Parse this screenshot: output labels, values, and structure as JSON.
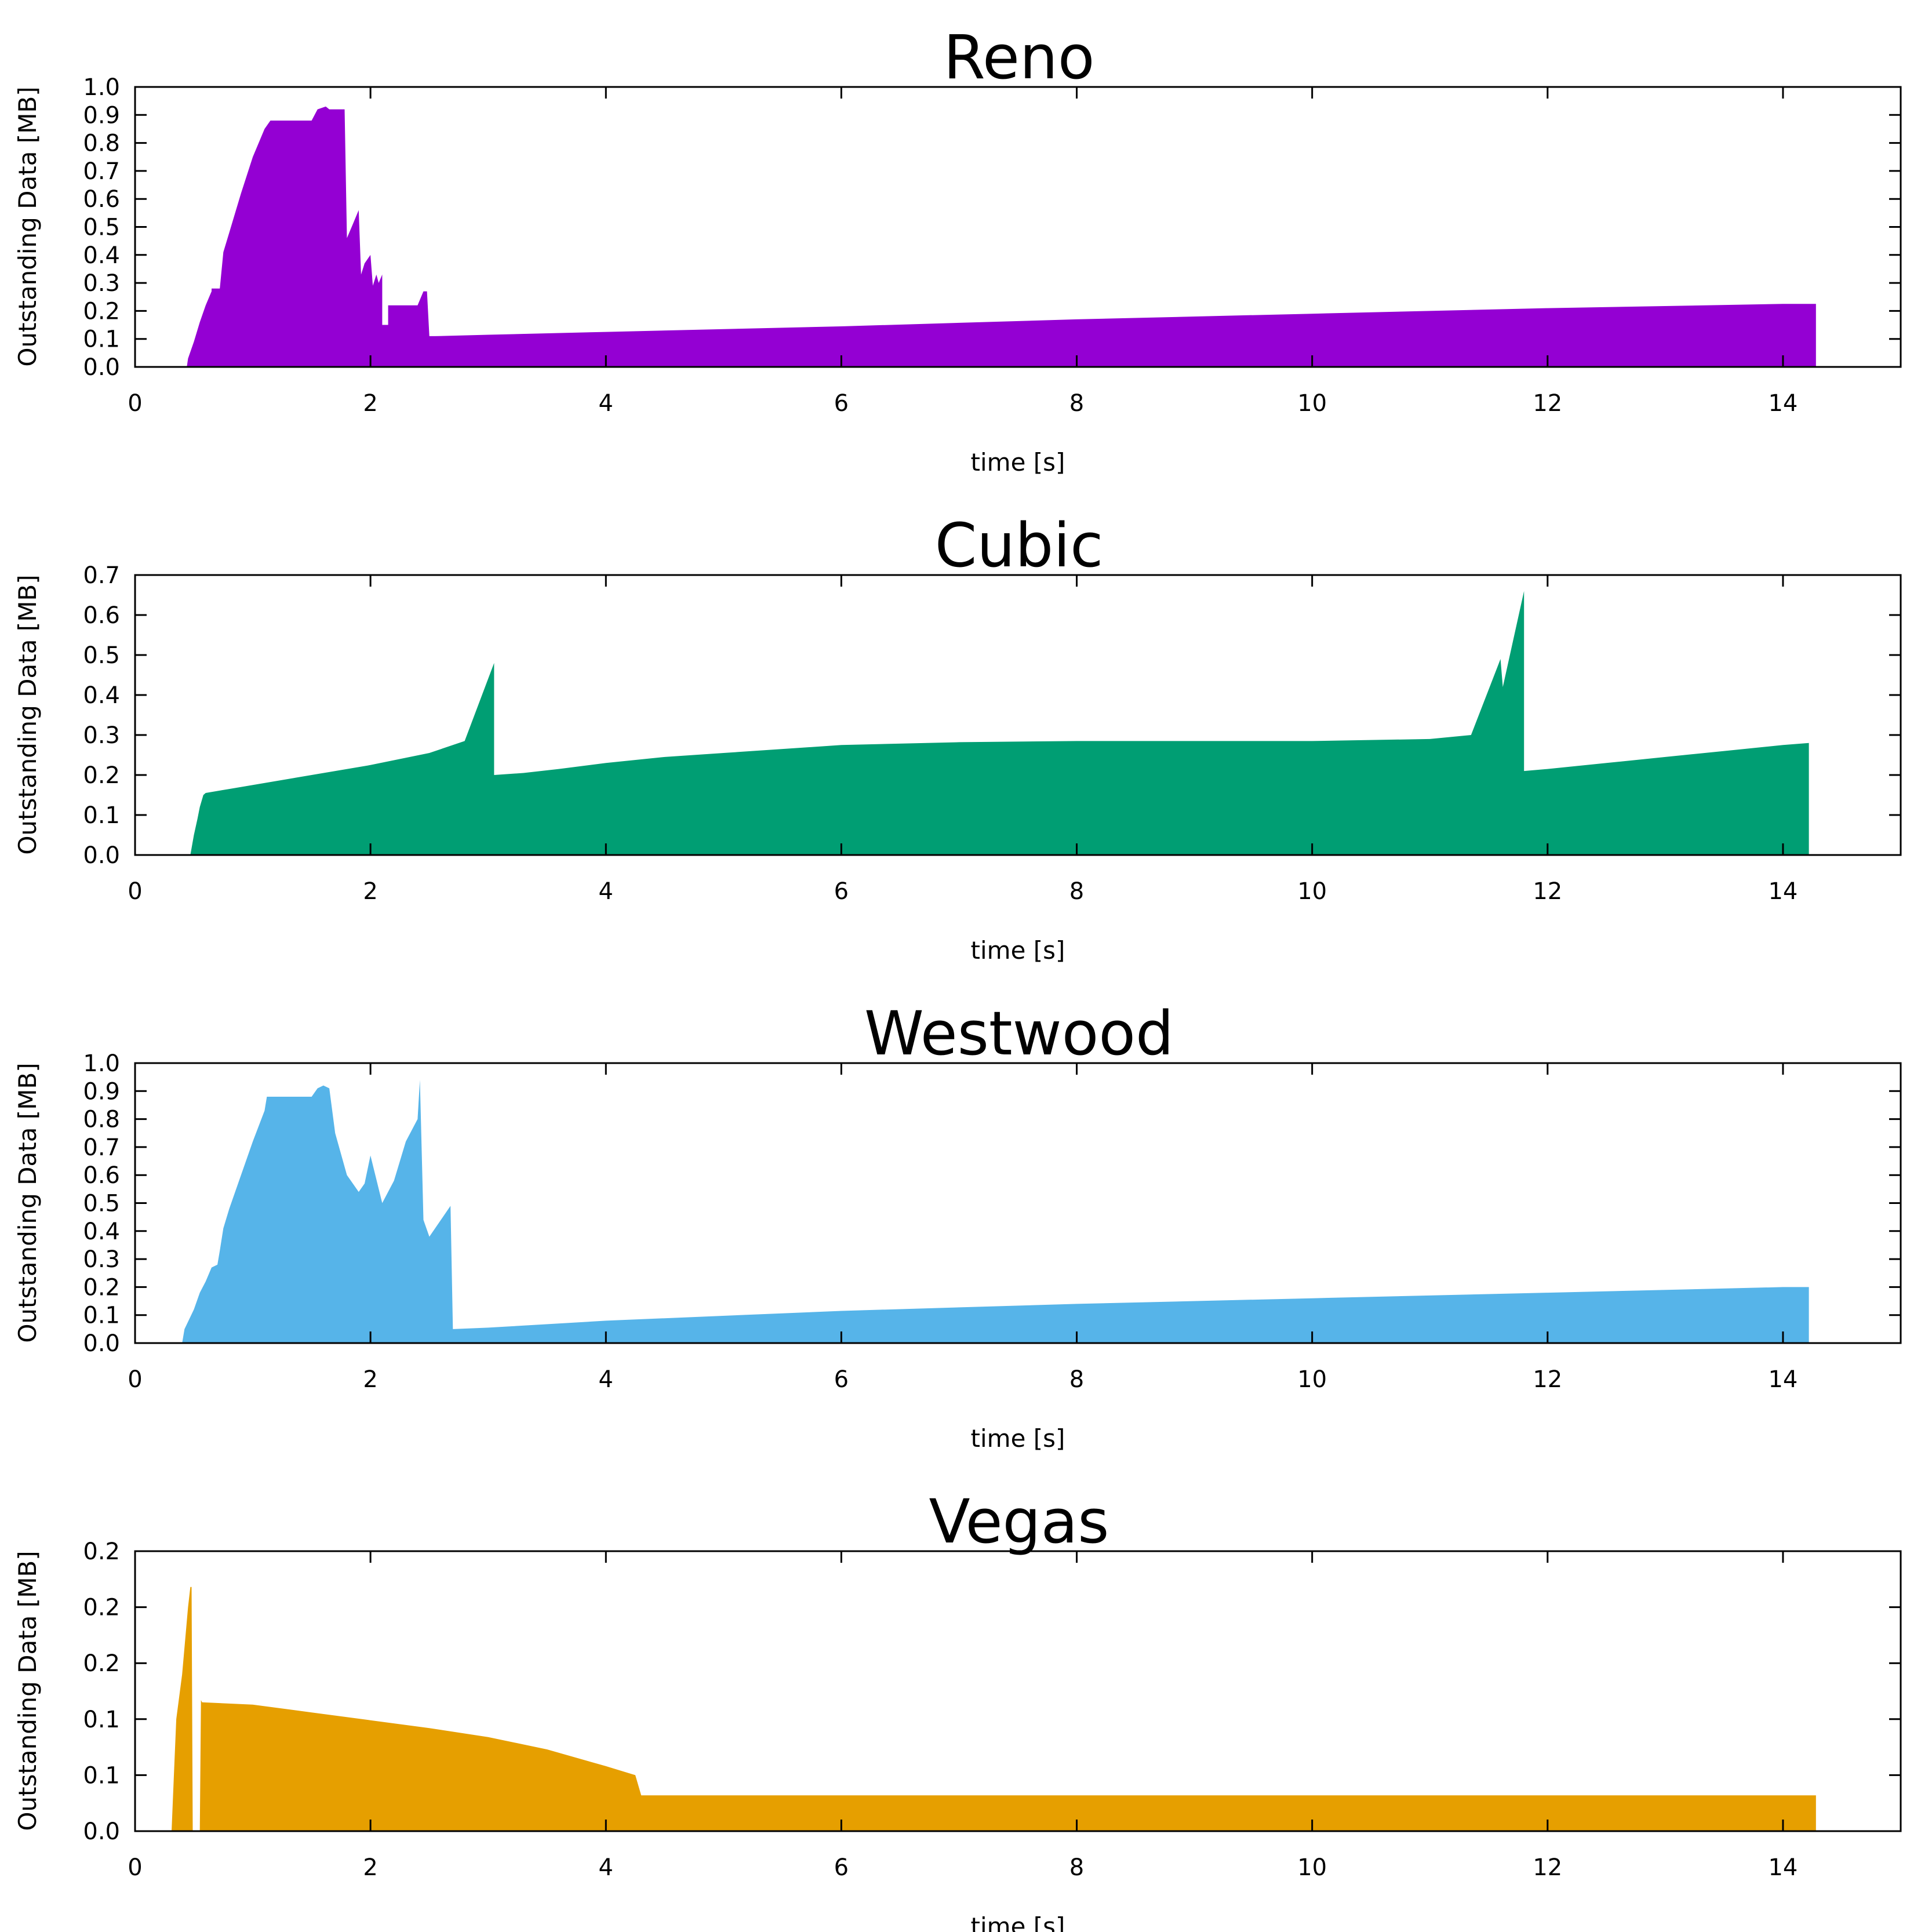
{
  "charts": [
    {
      "type": "area",
      "title": "Reno",
      "xlabel": "time [s]",
      "ylabel": "Outstanding Data [MB]",
      "color": "#9400d3",
      "xlim": [
        0,
        15
      ],
      "ylim": [
        0,
        1.0
      ],
      "x_ticks": [
        "0",
        "2",
        "4",
        "6",
        "8",
        "10",
        "12",
        "14"
      ],
      "y_ticks": [
        "0.0",
        "0.1",
        "0.2",
        "0.3",
        "0.4",
        "0.5",
        "0.6",
        "0.7",
        "0.8",
        "0.9",
        "1.0"
      ],
      "x": [
        0.44,
        0.45,
        0.5,
        0.55,
        0.6,
        0.65,
        0.65,
        0.7,
        0.72,
        0.75,
        0.8,
        0.9,
        1.0,
        1.1,
        1.15,
        1.5,
        1.55,
        1.62,
        1.65,
        1.7,
        1.78,
        1.8,
        1.85,
        1.9,
        1.92,
        1.95,
        2.0,
        2.02,
        2.05,
        2.07,
        2.1,
        2.1,
        2.15,
        2.15,
        2.4,
        2.45,
        2.48,
        2.5,
        2.55,
        3.0,
        4.0,
        6.0,
        8.0,
        10.0,
        12.0,
        14.0,
        14.28
      ],
      "y": [
        0.0,
        0.03,
        0.09,
        0.16,
        0.22,
        0.27,
        0.28,
        0.28,
        0.28,
        0.41,
        0.48,
        0.62,
        0.75,
        0.85,
        0.88,
        0.88,
        0.92,
        0.93,
        0.92,
        0.92,
        0.92,
        0.46,
        0.51,
        0.56,
        0.33,
        0.37,
        0.4,
        0.29,
        0.33,
        0.3,
        0.33,
        0.15,
        0.15,
        0.22,
        0.22,
        0.27,
        0.27,
        0.11,
        0.11,
        0.115,
        0.125,
        0.145,
        0.17,
        0.19,
        0.21,
        0.225,
        0.225
      ]
    },
    {
      "type": "area",
      "title": "Cubic",
      "xlabel": "time [s]",
      "ylabel": "Outstanding Data [MB]",
      "color": "#009e73",
      "xlim": [
        0,
        15
      ],
      "ylim": [
        0,
        0.7
      ],
      "x_ticks": [
        "0",
        "2",
        "4",
        "6",
        "8",
        "10",
        "12",
        "14"
      ],
      "y_ticks": [
        "0.0",
        "0.1",
        "0.2",
        "0.3",
        "0.4",
        "0.5",
        "0.6",
        "0.7"
      ],
      "x": [
        0.47,
        0.5,
        0.53,
        0.55,
        0.58,
        0.6,
        0.8,
        1.0,
        1.5,
        2.0,
        2.5,
        2.8,
        3.05,
        3.05,
        3.3,
        3.6,
        4.0,
        4.5,
        5.0,
        5.5,
        6.0,
        7.0,
        8.0,
        9.0,
        10.0,
        11.0,
        11.35,
        11.6,
        11.62,
        11.8,
        11.8,
        12.0,
        12.5,
        13.0,
        13.5,
        14.0,
        14.22
      ],
      "y": [
        0.0,
        0.05,
        0.09,
        0.12,
        0.15,
        0.155,
        0.165,
        0.175,
        0.2,
        0.225,
        0.255,
        0.285,
        0.48,
        0.2,
        0.205,
        0.215,
        0.23,
        0.245,
        0.255,
        0.265,
        0.275,
        0.282,
        0.285,
        0.285,
        0.285,
        0.29,
        0.3,
        0.49,
        0.42,
        0.66,
        0.21,
        0.215,
        0.23,
        0.245,
        0.26,
        0.275,
        0.28
      ]
    },
    {
      "type": "area",
      "title": "Westwood",
      "xlabel": "time [s]",
      "ylabel": "Outstanding Data [MB]",
      "color": "#56b4e9",
      "xlim": [
        0,
        15
      ],
      "ylim": [
        0,
        1.0
      ],
      "x_ticks": [
        "0",
        "2",
        "4",
        "6",
        "8",
        "10",
        "12",
        "14"
      ],
      "y_ticks": [
        "0.0",
        "0.1",
        "0.2",
        "0.3",
        "0.4",
        "0.5",
        "0.6",
        "0.7",
        "0.8",
        "0.9",
        "1.0"
      ],
      "x": [
        0.4,
        0.42,
        0.5,
        0.55,
        0.6,
        0.65,
        0.7,
        0.72,
        0.75,
        0.8,
        0.9,
        1.0,
        1.1,
        1.12,
        1.5,
        1.55,
        1.6,
        1.65,
        1.7,
        1.8,
        1.9,
        1.95,
        2.0,
        2.1,
        2.2,
        2.3,
        2.4,
        2.42,
        2.45,
        2.5,
        2.68,
        2.7,
        3.0,
        4.0,
        6.0,
        8.0,
        10.0,
        12.0,
        14.0,
        14.22
      ],
      "y": [
        0.0,
        0.05,
        0.12,
        0.18,
        0.22,
        0.27,
        0.28,
        0.33,
        0.41,
        0.48,
        0.6,
        0.72,
        0.83,
        0.88,
        0.88,
        0.91,
        0.92,
        0.91,
        0.75,
        0.6,
        0.54,
        0.57,
        0.67,
        0.5,
        0.58,
        0.72,
        0.8,
        0.94,
        0.44,
        0.38,
        0.49,
        0.05,
        0.055,
        0.08,
        0.115,
        0.14,
        0.16,
        0.18,
        0.2,
        0.2
      ]
    },
    {
      "type": "area",
      "title": "Vegas",
      "xlabel": "time [s]",
      "ylabel": "Outstanding Data [MB]",
      "color": "#e69f00",
      "xlim": [
        0,
        15
      ],
      "ylim": [
        0,
        0.25
      ],
      "x_ticks": [
        "0",
        "2",
        "4",
        "6",
        "8",
        "10",
        "12",
        "14"
      ],
      "y_ticks": [
        "0.0",
        "0.1",
        "0.1",
        "0.2",
        "0.2",
        "0.2"
      ],
      "x": [
        0.31,
        0.33,
        0.35,
        0.4,
        0.45,
        0.47,
        0.48,
        0.49,
        0.55,
        0.56,
        0.57,
        1.0,
        1.5,
        2.0,
        2.5,
        3.0,
        3.5,
        4.0,
        4.25,
        4.3,
        5.0,
        6.0,
        8.0,
        10.0,
        12.0,
        14.0,
        14.28
      ],
      "y": [
        0.0,
        0.05,
        0.1,
        0.14,
        0.2,
        0.218,
        0.218,
        0.0,
        0.0,
        0.117,
        0.115,
        0.113,
        0.106,
        0.099,
        0.092,
        0.084,
        0.073,
        0.058,
        0.05,
        0.032,
        0.032,
        0.032,
        0.032,
        0.032,
        0.032,
        0.032,
        0.032
      ]
    }
  ]
}
